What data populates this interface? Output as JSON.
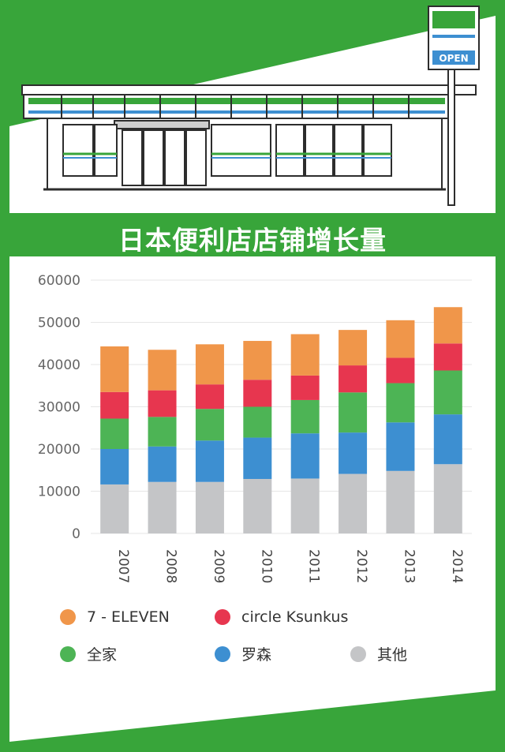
{
  "title": "日本便利店店铺增长量",
  "sign": {
    "text": "OPEN"
  },
  "colors": {
    "background": "#38a53a",
    "panel": "#ffffff",
    "seven_eleven": "#f0964a",
    "circle_k": "#e7364f",
    "family_mart": "#4db455",
    "lawson": "#3d8fd1",
    "others": "#c4c5c7"
  },
  "chart_data": {
    "type": "bar",
    "stacked": true,
    "categories": [
      "2007",
      "2008",
      "2009",
      "2010",
      "2011",
      "2012",
      "2013",
      "2014"
    ],
    "series": [
      {
        "name": "其他",
        "values": [
          11600,
          12200,
          12200,
          12900,
          13000,
          14100,
          14800,
          16400
        ]
      },
      {
        "name": "罗森",
        "values": [
          8400,
          8400,
          9800,
          9800,
          10700,
          9800,
          11500,
          11800
        ]
      },
      {
        "name": "全家",
        "values": [
          7200,
          7000,
          7500,
          7300,
          7900,
          9500,
          9300,
          10400
        ]
      },
      {
        "name": "circle Ksunkus",
        "values": [
          6300,
          6300,
          5800,
          6400,
          5800,
          6400,
          6000,
          6400
        ]
      },
      {
        "name": "7 - ELEVEN",
        "values": [
          10800,
          9600,
          9500,
          9200,
          9800,
          8400,
          8900,
          8600
        ]
      }
    ],
    "ylim": [
      0,
      60000
    ],
    "yticks": [
      0,
      10000,
      20000,
      30000,
      40000,
      50000,
      60000
    ],
    "grid": true,
    "legend_position": "bottom"
  },
  "legend": [
    {
      "label": "7 - ELEVEN",
      "color": "#f0964a"
    },
    {
      "label": "circle Ksunkus",
      "color": "#e7364f"
    },
    {
      "label": "全家",
      "color": "#4db455"
    },
    {
      "label": "罗森",
      "color": "#3d8fd1"
    },
    {
      "label": "其他",
      "color": "#c4c5c7"
    }
  ]
}
